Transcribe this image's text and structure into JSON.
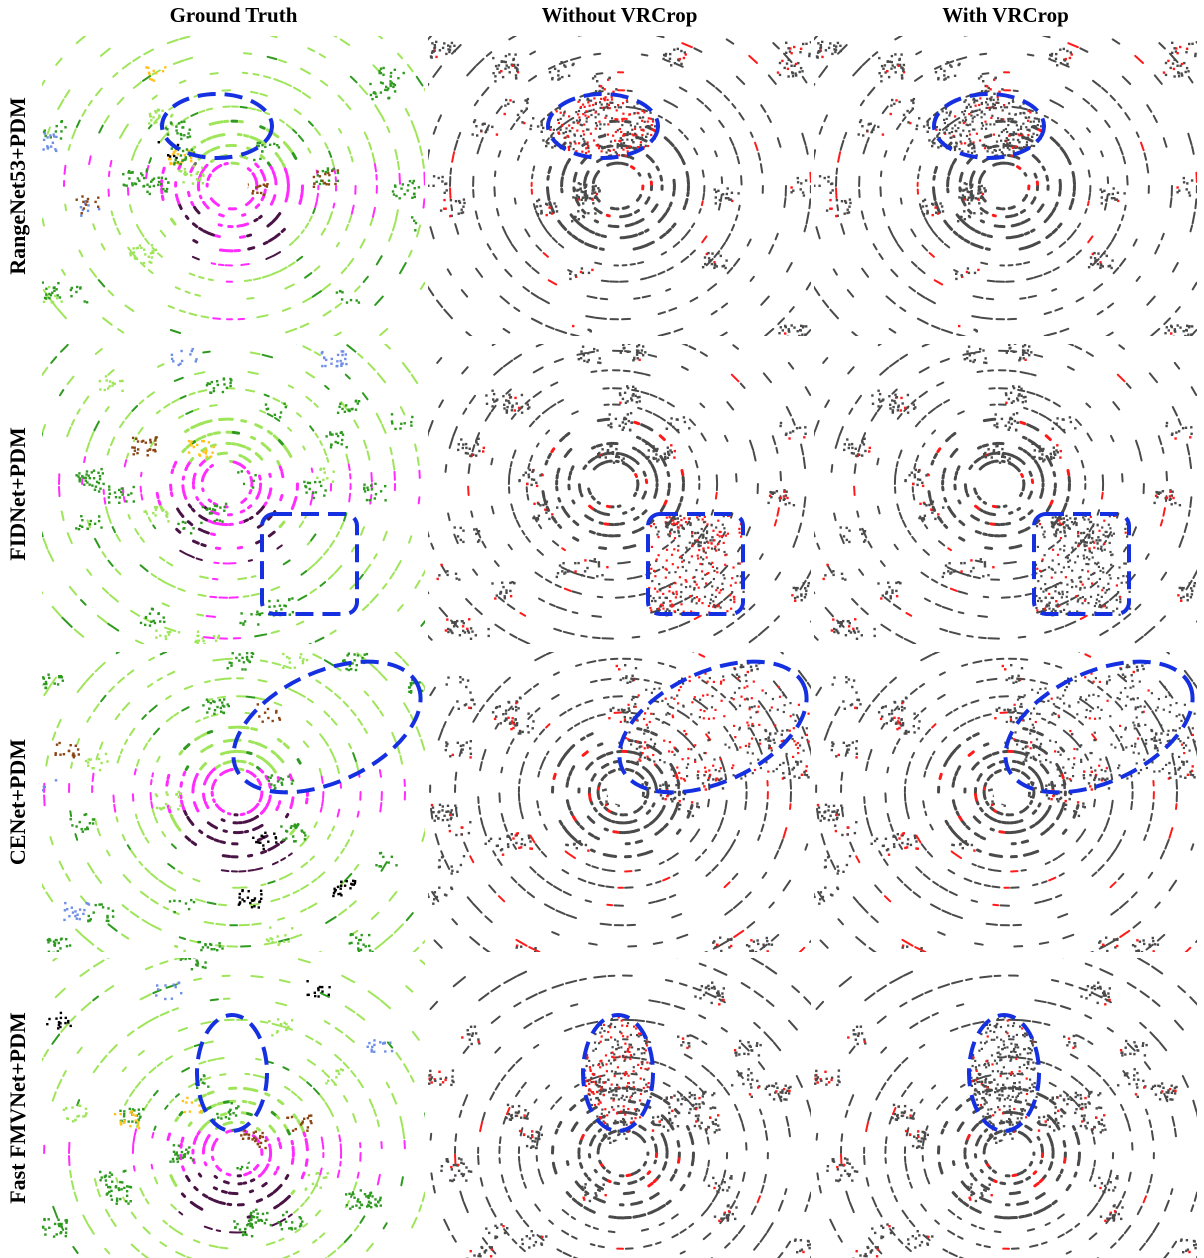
{
  "columns": [
    "Ground Truth",
    "Without VRCrop",
    "With VRCrop"
  ],
  "rows": [
    "RangeNet53+PDM",
    "FIDNet+PDM",
    "CENet+PDM",
    "Fast FMVNet+PDM"
  ],
  "colors": {
    "vegetation": "#2e9a1f",
    "terrain": "#9fe55a",
    "road": "#ff2bff",
    "sidewalk": "#4a1345",
    "fence": "#ffc21a",
    "car": "#6f8fe6",
    "trunk": "#8b4513",
    "building": "#000000",
    "correct_point": "#4a4a4a",
    "error_point": "#ff1a1a",
    "highlight": "#1530e0"
  }
}
